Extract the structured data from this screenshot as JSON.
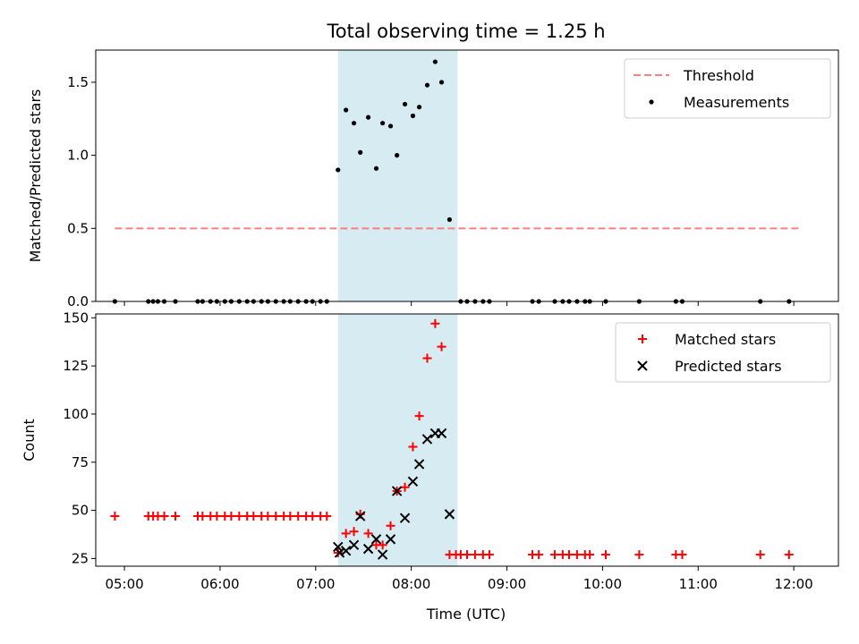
{
  "chart_data": {
    "title": "Total observing time = 1.25 h",
    "x_axis": {
      "label": "Time (UTC)",
      "range": [
        "04:42",
        "12:28"
      ],
      "ticks": [
        "05:00",
        "06:00",
        "07:00",
        "08:00",
        "09:00",
        "10:00",
        "11:00",
        "12:00"
      ]
    },
    "shaded_interval": {
      "start": "07:14",
      "end": "08:29",
      "color": "#add8e6"
    },
    "panels": [
      {
        "type": "scatter",
        "ylabel": "Matched/Predicted stars",
        "ylim": [
          0,
          1.72
        ],
        "yticks": [
          "0.0",
          "0.5",
          "1.0",
          "1.5"
        ],
        "legend_position": "top-right",
        "series": [
          {
            "name": "Threshold",
            "kind": "dashed-line",
            "color": "#ff7f7f",
            "points": [
              [
                "04:54",
                0.5
              ],
              [
                "12:04",
                0.5
              ]
            ]
          },
          {
            "name": "Measurements",
            "kind": "dots",
            "color": "#000000",
            "points": [
              [
                "04:54",
                0
              ],
              [
                "05:15",
                0
              ],
              [
                "05:18",
                0
              ],
              [
                "05:21",
                0
              ],
              [
                "05:25",
                0
              ],
              [
                "05:32",
                0
              ],
              [
                "05:46",
                0
              ],
              [
                "05:49",
                0
              ],
              [
                "05:54",
                0
              ],
              [
                "05:58",
                0
              ],
              [
                "06:03",
                0
              ],
              [
                "06:07",
                0
              ],
              [
                "06:12",
                0
              ],
              [
                "06:17",
                0
              ],
              [
                "06:21",
                0
              ],
              [
                "06:26",
                0
              ],
              [
                "06:30",
                0
              ],
              [
                "06:35",
                0
              ],
              [
                "06:40",
                0
              ],
              [
                "06:44",
                0
              ],
              [
                "06:49",
                0
              ],
              [
                "06:54",
                0
              ],
              [
                "06:58",
                0
              ],
              [
                "07:03",
                0
              ],
              [
                "07:07",
                0
              ],
              [
                "07:14",
                0.9
              ],
              [
                "07:19",
                1.31
              ],
              [
                "07:24",
                1.22
              ],
              [
                "07:28",
                1.02
              ],
              [
                "07:33",
                1.26
              ],
              [
                "07:38",
                0.91
              ],
              [
                "07:42",
                1.22
              ],
              [
                "07:47",
                1.2
              ],
              [
                "07:51",
                1.0
              ],
              [
                "07:56",
                1.35
              ],
              [
                "08:01",
                1.27
              ],
              [
                "08:05",
                1.33
              ],
              [
                "08:10",
                1.48
              ],
              [
                "08:15",
                1.64
              ],
              [
                "08:19",
                1.5
              ],
              [
                "08:24",
                0.56
              ],
              [
                "08:31",
                0
              ],
              [
                "08:35",
                0
              ],
              [
                "08:40",
                0
              ],
              [
                "08:45",
                0
              ],
              [
                "08:49",
                0
              ],
              [
                "09:16",
                0
              ],
              [
                "09:20",
                0
              ],
              [
                "09:30",
                0
              ],
              [
                "09:35",
                0
              ],
              [
                "09:39",
                0
              ],
              [
                "09:44",
                0
              ],
              [
                "09:49",
                0
              ],
              [
                "09:52",
                0
              ],
              [
                "10:02",
                0
              ],
              [
                "10:23",
                0
              ],
              [
                "10:46",
                0
              ],
              [
                "10:50",
                0
              ],
              [
                "11:39",
                0
              ],
              [
                "11:57",
                0
              ]
            ]
          }
        ]
      },
      {
        "type": "scatter",
        "ylabel": "Count",
        "ylim": [
          21,
          152
        ],
        "yticks": [
          "25",
          "50",
          "75",
          "100",
          "125",
          "150"
        ],
        "legend_position": "top-right",
        "series": [
          {
            "name": "Matched stars",
            "kind": "plus",
            "color": "#ff0000",
            "points": [
              [
                "04:54",
                47
              ],
              [
                "05:15",
                47
              ],
              [
                "05:18",
                47
              ],
              [
                "05:21",
                47
              ],
              [
                "05:25",
                47
              ],
              [
                "05:32",
                47
              ],
              [
                "05:46",
                47
              ],
              [
                "05:49",
                47
              ],
              [
                "05:54",
                47
              ],
              [
                "05:58",
                47
              ],
              [
                "06:03",
                47
              ],
              [
                "06:07",
                47
              ],
              [
                "06:12",
                47
              ],
              [
                "06:17",
                47
              ],
              [
                "06:21",
                47
              ],
              [
                "06:26",
                47
              ],
              [
                "06:30",
                47
              ],
              [
                "06:35",
                47
              ],
              [
                "06:40",
                47
              ],
              [
                "06:44",
                47
              ],
              [
                "06:49",
                47
              ],
              [
                "06:54",
                47
              ],
              [
                "06:58",
                47
              ],
              [
                "07:03",
                47
              ],
              [
                "07:07",
                47
              ],
              [
                "07:14",
                28
              ],
              [
                "07:19",
                38
              ],
              [
                "07:24",
                39
              ],
              [
                "07:28",
                48
              ],
              [
                "07:33",
                38
              ],
              [
                "07:38",
                32
              ],
              [
                "07:42",
                32
              ],
              [
                "07:47",
                42
              ],
              [
                "07:51",
                60
              ],
              [
                "07:56",
                62
              ],
              [
                "08:01",
                83
              ],
              [
                "08:05",
                99
              ],
              [
                "08:10",
                129
              ],
              [
                "08:15",
                147
              ],
              [
                "08:19",
                135
              ],
              [
                "08:24",
                27
              ],
              [
                "08:28",
                27
              ],
              [
                "08:31",
                27
              ],
              [
                "08:35",
                27
              ],
              [
                "08:40",
                27
              ],
              [
                "08:45",
                27
              ],
              [
                "08:49",
                27
              ],
              [
                "09:16",
                27
              ],
              [
                "09:20",
                27
              ],
              [
                "09:30",
                27
              ],
              [
                "09:35",
                27
              ],
              [
                "09:39",
                27
              ],
              [
                "09:44",
                27
              ],
              [
                "09:49",
                27
              ],
              [
                "09:52",
                27
              ],
              [
                "10:02",
                27
              ],
              [
                "10:23",
                27
              ],
              [
                "10:46",
                27
              ],
              [
                "10:50",
                27
              ],
              [
                "11:39",
                27
              ],
              [
                "11:57",
                27
              ]
            ]
          },
          {
            "name": "Predicted stars",
            "kind": "x",
            "color": "#000000",
            "points": [
              [
                "07:14",
                31
              ],
              [
                "07:15",
                28
              ],
              [
                "07:19",
                29
              ],
              [
                "07:24",
                32
              ],
              [
                "07:28",
                47
              ],
              [
                "07:33",
                30
              ],
              [
                "07:38",
                35
              ],
              [
                "07:42",
                27
              ],
              [
                "07:47",
                35
              ],
              [
                "07:51",
                60
              ],
              [
                "07:56",
                46
              ],
              [
                "08:01",
                65
              ],
              [
                "08:05",
                74
              ],
              [
                "08:10",
                87
              ],
              [
                "08:15",
                90
              ],
              [
                "08:19",
                90
              ],
              [
                "08:24",
                48
              ]
            ]
          }
        ]
      }
    ]
  }
}
